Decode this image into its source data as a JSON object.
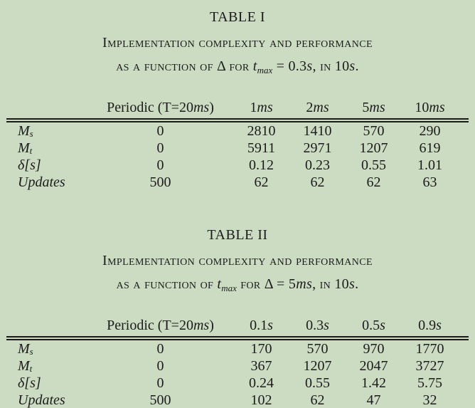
{
  "page": {
    "background_color": "#ccdcc2",
    "text_color": "#1b1b1b"
  },
  "tables": [
    {
      "title": "TABLE I",
      "caption_line1": "Implementation complexity and performance",
      "caption2": [
        {
          "style": "sc",
          "text": "as a function of "
        },
        {
          "style": "rm",
          "text": "Δ "
        },
        {
          "style": "sc",
          "text": "for "
        },
        {
          "style": "it",
          "text": "t"
        },
        {
          "style": "sub",
          "text": "max"
        },
        {
          "style": "rm",
          "text": " = 0.3"
        },
        {
          "style": "it",
          "text": "s"
        },
        {
          "style": "rm",
          "text": ", "
        },
        {
          "style": "sc",
          "text": "in "
        },
        {
          "style": "rm",
          "text": "10"
        },
        {
          "style": "it",
          "text": "s"
        },
        {
          "style": "rm",
          "text": "."
        }
      ],
      "header": {
        "periodic": {
          "pre": "Periodic (T=20",
          "unit": "ms",
          "post": ")"
        },
        "cols": [
          {
            "num": "1",
            "unit": "ms"
          },
          {
            "num": "2",
            "unit": "ms"
          },
          {
            "num": "5",
            "unit": "ms"
          },
          {
            "num": "10",
            "unit": "ms"
          }
        ]
      },
      "rows": [
        {
          "label": {
            "base": "M",
            "sub": "s"
          },
          "values": [
            "0",
            "2810",
            "1410",
            "570",
            "290"
          ]
        },
        {
          "label": {
            "base": "M",
            "sub": "t"
          },
          "values": [
            "0",
            "5911",
            "2971",
            "1207",
            "619"
          ]
        },
        {
          "label": {
            "base": "δ[s]",
            "sub": ""
          },
          "values": [
            "0",
            "0.12",
            "0.23",
            "0.55",
            "1.01"
          ]
        },
        {
          "label": {
            "base": "Updates",
            "sub": ""
          },
          "values": [
            "500",
            "62",
            "62",
            "62",
            "63"
          ]
        }
      ]
    },
    {
      "title": "TABLE II",
      "caption_line1": "Implementation complexity and performance",
      "caption2": [
        {
          "style": "sc",
          "text": "as a function of "
        },
        {
          "style": "it",
          "text": "t"
        },
        {
          "style": "sub",
          "text": "max"
        },
        {
          "style": "sc",
          "text": " for "
        },
        {
          "style": "rm",
          "text": "Δ = 5"
        },
        {
          "style": "it",
          "text": "ms"
        },
        {
          "style": "rm",
          "text": ", "
        },
        {
          "style": "sc",
          "text": "in "
        },
        {
          "style": "rm",
          "text": "10"
        },
        {
          "style": "it",
          "text": "s"
        },
        {
          "style": "rm",
          "text": "."
        }
      ],
      "header": {
        "periodic": {
          "pre": "Periodic (T=20",
          "unit": "ms",
          "post": ")"
        },
        "cols": [
          {
            "num": "0.1",
            "unit": "s"
          },
          {
            "num": "0.3",
            "unit": "s"
          },
          {
            "num": "0.5",
            "unit": "s"
          },
          {
            "num": "0.9",
            "unit": "s"
          }
        ]
      },
      "rows": [
        {
          "label": {
            "base": "M",
            "sub": "s"
          },
          "values": [
            "0",
            "170",
            "570",
            "970",
            "1770"
          ]
        },
        {
          "label": {
            "base": "M",
            "sub": "t"
          },
          "values": [
            "0",
            "367",
            "1207",
            "2047",
            "3727"
          ]
        },
        {
          "label": {
            "base": "δ[s]",
            "sub": ""
          },
          "values": [
            "0",
            "0.24",
            "0.55",
            "1.42",
            "5.75"
          ]
        },
        {
          "label": {
            "base": "Updates",
            "sub": ""
          },
          "values": [
            "500",
            "102",
            "62",
            "47",
            "32"
          ]
        }
      ]
    }
  ]
}
